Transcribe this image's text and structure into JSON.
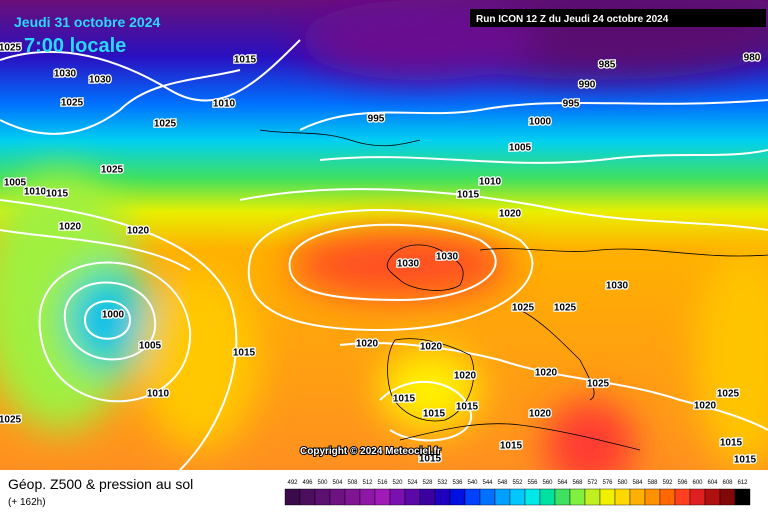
{
  "header": {
    "date": "Jeudi 31 octobre 2024",
    "time": "7:00 locale",
    "run": "Run ICON 12 Z du Jeudi 24 octobre 2024"
  },
  "copyright": "Copyright © 2024 Meteociel.fr",
  "footer": {
    "title": "Géop. Z500 & pression au sol",
    "lead": "(+ 162h)"
  },
  "colorbar": {
    "ticks": [
      492,
      496,
      500,
      504,
      508,
      512,
      516,
      520,
      524,
      528,
      532,
      536,
      540,
      544,
      548,
      552,
      556,
      560,
      564,
      568,
      572,
      576,
      580,
      584,
      588,
      592,
      596,
      600,
      604,
      608,
      612
    ],
    "colors": [
      "#3a0a4a",
      "#4b0f5e",
      "#5c1070",
      "#6e1282",
      "#801594",
      "#8f17a6",
      "#a01ab8",
      "#7a10b0",
      "#5a08a8",
      "#3a00a0",
      "#2000c0",
      "#0010e0",
      "#0040ff",
      "#0070ff",
      "#00a0ff",
      "#00c8ff",
      "#00e8e8",
      "#00e0a0",
      "#40e060",
      "#80f040",
      "#c0f020",
      "#f0f000",
      "#ffd800",
      "#ffb000",
      "#ff9000",
      "#ff6800",
      "#ff4020",
      "#e02020",
      "#b01010",
      "#800808",
      "#000000"
    ]
  },
  "isobar_labels": [
    "1025",
    "1030",
    "1030",
    "1025",
    "1015",
    "1010",
    "1025",
    "995",
    "985",
    "990",
    "995",
    "1000",
    "1005",
    "1010",
    "1015",
    "1020",
    "1025",
    "1005",
    "1010",
    "1015",
    "1020",
    "1020",
    "1030",
    "1030",
    "1030",
    "1025",
    "1025",
    "1000",
    "1005",
    "1015",
    "1020",
    "1020",
    "1010",
    "1015",
    "1020",
    "1020",
    "1025",
    "1015",
    "1015",
    "1020",
    "1025",
    "1020",
    "1025",
    "1015",
    "1015",
    "1015",
    "1015",
    "980"
  ]
}
